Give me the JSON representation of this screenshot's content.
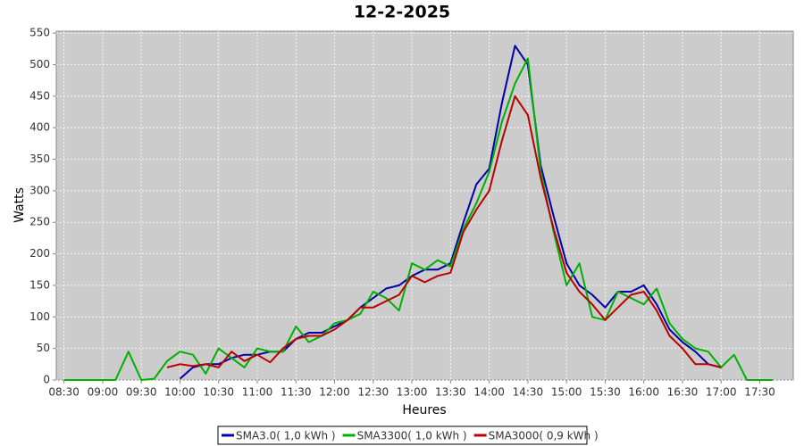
{
  "chart_data": {
    "type": "line",
    "title": "12-2-2025",
    "x_label": "Heures",
    "y_label": "Watts",
    "x": [
      "08:30",
      "08:40",
      "08:50",
      "09:00",
      "09:10",
      "09:20",
      "09:30",
      "09:40",
      "09:50",
      "10:00",
      "10:10",
      "10:20",
      "10:30",
      "10:40",
      "10:50",
      "11:00",
      "11:10",
      "11:20",
      "11:30",
      "11:40",
      "11:50",
      "12:00",
      "12:10",
      "12:20",
      "12:30",
      "12:40",
      "12:50",
      "13:00",
      "13:10",
      "13:20",
      "13:30",
      "13:40",
      "13:50",
      "14:00",
      "14:10",
      "14:20",
      "14:30",
      "14:40",
      "14:50",
      "15:00",
      "15:10",
      "15:20",
      "15:30",
      "15:40",
      "15:50",
      "16:00",
      "16:10",
      "16:20",
      "16:30",
      "16:40",
      "16:50",
      "17:00",
      "17:10",
      "17:20",
      "17:30",
      "17:40"
    ],
    "series": [
      {
        "name": "SMA3.0( 1,0 kWh )",
        "color": "#0000aa",
        "values": [
          null,
          null,
          null,
          null,
          null,
          null,
          null,
          null,
          null,
          2,
          20,
          25,
          25,
          35,
          40,
          40,
          45,
          45,
          65,
          75,
          75,
          85,
          95,
          115,
          130,
          145,
          150,
          165,
          175,
          175,
          185,
          250,
          310,
          335,
          440,
          530,
          500,
          340,
          260,
          185,
          150,
          135,
          115,
          140,
          140,
          150,
          120,
          80,
          60,
          45,
          25,
          20,
          null,
          null,
          null,
          null
        ]
      },
      {
        "name": "SMA3300( 1,0 kWh )",
        "color": "#00b000",
        "values": [
          0,
          0,
          0,
          0,
          0,
          45,
          0,
          2,
          30,
          45,
          40,
          10,
          50,
          35,
          20,
          50,
          45,
          45,
          85,
          60,
          70,
          90,
          95,
          105,
          140,
          130,
          110,
          185,
          175,
          190,
          180,
          240,
          280,
          330,
          410,
          470,
          510,
          330,
          235,
          150,
          185,
          100,
          95,
          140,
          130,
          120,
          145,
          90,
          65,
          50,
          45,
          20,
          40,
          0,
          0,
          0
        ]
      },
      {
        "name": "SMA3000( 0,9 kWh )",
        "color": "#bb0000",
        "values": [
          null,
          null,
          null,
          null,
          null,
          null,
          null,
          null,
          20,
          25,
          22,
          25,
          20,
          45,
          30,
          40,
          28,
          50,
          65,
          70,
          70,
          80,
          95,
          115,
          115,
          125,
          135,
          165,
          155,
          165,
          170,
          235,
          270,
          300,
          380,
          450,
          420,
          320,
          240,
          170,
          140,
          120,
          95,
          115,
          135,
          140,
          110,
          70,
          50,
          25,
          25,
          20,
          null,
          null,
          null,
          null
        ]
      }
    ],
    "xlim": [
      "08:24",
      "17:56"
    ],
    "xticks": [
      "08:30",
      "09:00",
      "09:30",
      "10:00",
      "10:30",
      "11:00",
      "11:30",
      "12:00",
      "12:30",
      "13:00",
      "13:30",
      "14:00",
      "14:30",
      "15:00",
      "15:30",
      "16:00",
      "16:30",
      "17:00",
      "17:30"
    ],
    "ylim": [
      0,
      553
    ],
    "yticks": [
      0,
      50,
      100,
      150,
      200,
      250,
      300,
      350,
      400,
      450,
      500,
      550
    ],
    "grid": true
  }
}
